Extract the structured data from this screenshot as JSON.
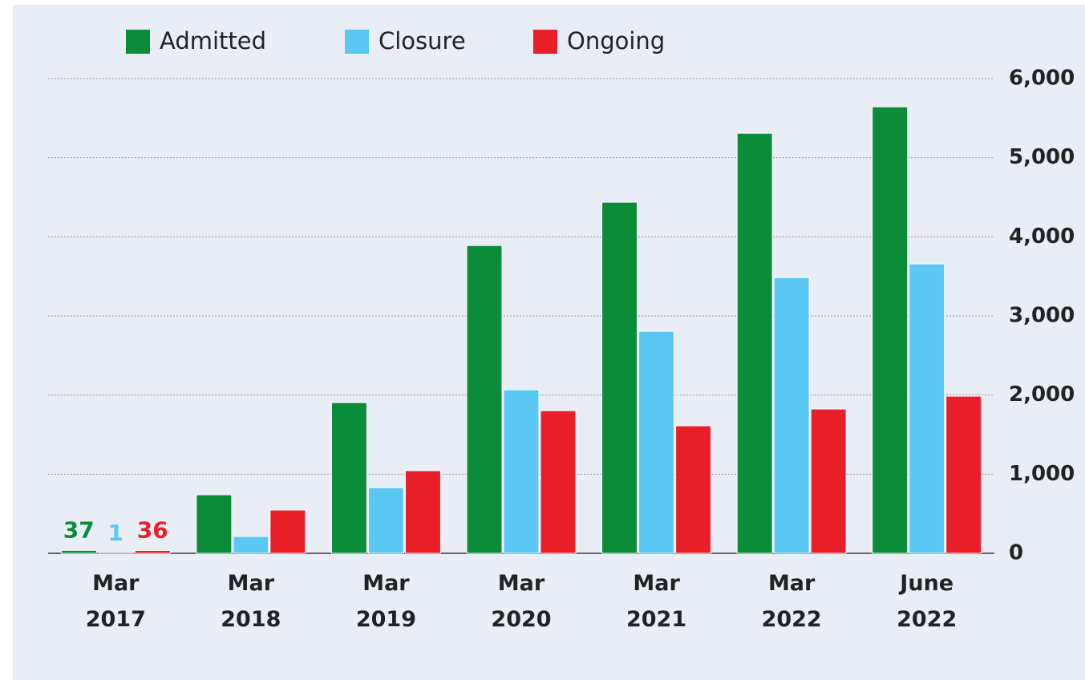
{
  "chart_data": {
    "type": "bar",
    "categories": [
      "Mar 2017",
      "Mar 2018",
      "Mar 2019",
      "Mar 2020",
      "Mar 2021",
      "Mar 2022",
      "June 2022"
    ],
    "series": [
      {
        "name": "Admitted",
        "color": "#0b8c3b",
        "values": [
          37,
          740,
          1905,
          3890,
          4438,
          5309,
          5643
        ],
        "value_labels": [
          "37",
          null,
          null,
          null,
          null,
          null,
          null
        ]
      },
      {
        "name": "Closure",
        "color": "#5bc8f3",
        "values": [
          1,
          213,
          831,
          2067,
          2806,
          3485,
          3658
        ],
        "value_labels": [
          "1",
          null,
          null,
          null,
          null,
          null,
          null
        ]
      },
      {
        "name": "Ongoing",
        "color": "#e81e29",
        "values": [
          36,
          547,
          1044,
          1803,
          1611,
          1824,
          1986
        ],
        "value_labels": [
          "36",
          null,
          null,
          null,
          null,
          null,
          null
        ]
      }
    ],
    "ylim": [
      0,
      6000
    ],
    "yticks": [
      0,
      {
        "value": 1000,
        "label": "1,000"
      },
      {
        "value": 2000,
        "label": "2,000"
      },
      {
        "value": 3000,
        "label": "3,000"
      },
      {
        "value": 4000,
        "label": "4,000"
      },
      {
        "value": 5000,
        "label": "5,000"
      },
      {
        "value": 6000,
        "label": "6,000"
      }
    ],
    "grid": true,
    "legend": "top"
  }
}
